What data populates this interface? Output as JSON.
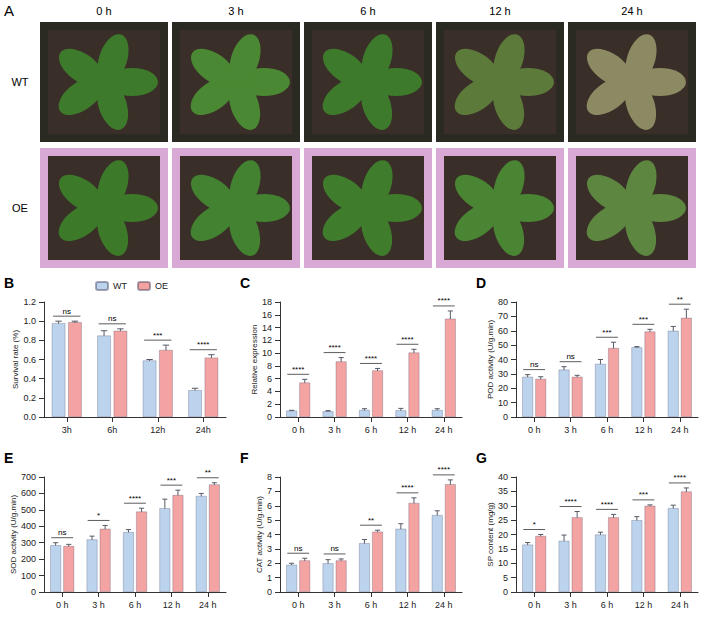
{
  "panel_a": {
    "letter": "A",
    "time_labels": [
      "0 h",
      "3 h",
      "6 h",
      "12 h",
      "24 h"
    ],
    "row_labels": [
      "WT",
      "OE"
    ]
  },
  "chart_data": [
    {
      "type": "bar",
      "letter": "B",
      "ylabel": "Survival rate (%)",
      "categories": [
        "3h",
        "6h",
        "12h",
        "24h"
      ],
      "series": [
        {
          "name": "WT",
          "color": "#bcd3ee",
          "values": [
            0.98,
            0.85,
            0.59,
            0.28
          ],
          "errors": [
            0.02,
            0.05,
            0.01,
            0.02
          ]
        },
        {
          "name": "OE",
          "color": "#f4a3a3",
          "values": [
            0.99,
            0.9,
            0.7,
            0.62
          ],
          "errors": [
            0.01,
            0.02,
            0.05,
            0.03
          ]
        }
      ],
      "significance": [
        "ns",
        "ns",
        "***",
        "****"
      ],
      "ylim": [
        0,
        1.2
      ],
      "yticks": [
        {
          "value": 0,
          "label": "0.0"
        },
        0.2,
        0.4,
        0.6,
        0.8,
        {
          "value": 1,
          "label": "1.0"
        },
        1.2
      ],
      "grid": false,
      "legend": "top"
    },
    {
      "type": "bar",
      "letter": "C",
      "ylabel": "Relative expression",
      "categories": [
        "0 h",
        "3 h",
        "6 h",
        "12 h",
        "24 h"
      ],
      "series": [
        {
          "name": "WT",
          "color": "#bcd3ee",
          "values": [
            1,
            0.9,
            1.1,
            1.05,
            1.1
          ],
          "errors": [
            0.05,
            0.1,
            0.2,
            0.3,
            0.2
          ]
        },
        {
          "name": "OE",
          "color": "#f4a3a3",
          "values": [
            5.4,
            8.7,
            7.3,
            10.1,
            15.4
          ],
          "errors": [
            0.5,
            0.6,
            0.3,
            0.5,
            1.2
          ]
        }
      ],
      "significance": [
        "****",
        "****",
        "****",
        "****",
        "****"
      ],
      "ylim": [
        0,
        18
      ],
      "yticks": [
        0,
        2,
        4,
        6,
        8,
        10,
        12,
        14,
        16,
        18
      ],
      "grid": false
    },
    {
      "type": "bar",
      "letter": "D",
      "ylabel": "POD activity (U/g.min)",
      "categories": [
        "0 h",
        "3 h",
        "6 h",
        "12 h",
        "24 h"
      ],
      "series": [
        {
          "name": "WT",
          "color": "#bcd3ee",
          "values": [
            28,
            33,
            37,
            48.5,
            60
          ],
          "errors": [
            1.5,
            2,
            3,
            0.5,
            3
          ]
        },
        {
          "name": "OE",
          "color": "#f4a3a3",
          "values": [
            26.5,
            28,
            48,
            59.5,
            69
          ],
          "errors": [
            1.5,
            1,
            4,
            1.5,
            6
          ]
        }
      ],
      "significance": [
        "ns",
        "ns",
        "***",
        "***",
        "**"
      ],
      "ylim": [
        0,
        80
      ],
      "yticks": [
        0,
        10,
        20,
        30,
        40,
        50,
        60,
        70,
        80
      ],
      "grid": false
    },
    {
      "type": "bar",
      "letter": "E",
      "ylabel": "SOD activity (U/g.min)",
      "categories": [
        "0 h",
        "3 h",
        "6 h",
        "12 h",
        "24 h"
      ],
      "series": [
        {
          "name": "WT",
          "color": "#bcd3ee",
          "values": [
            285,
            320,
            365,
            510,
            585
          ],
          "errors": [
            15,
            20,
            15,
            55,
            15
          ]
        },
        {
          "name": "OE",
          "color": "#f4a3a3",
          "values": [
            280,
            385,
            490,
            590,
            655
          ],
          "errors": [
            10,
            20,
            20,
            30,
            10
          ]
        }
      ],
      "significance": [
        "ns",
        "*",
        "****",
        "***",
        "**"
      ],
      "ylim": [
        0,
        700
      ],
      "yticks": [
        0,
        100,
        200,
        300,
        400,
        500,
        600,
        700
      ],
      "grid": false
    },
    {
      "type": "bar",
      "letter": "F",
      "ylabel": "CAT activity (U/g.min)",
      "categories": [
        "0 h",
        "3 h",
        "6 h",
        "12 h",
        "24 h"
      ],
      "series": [
        {
          "name": "WT",
          "color": "#bcd3ee",
          "values": [
            1.9,
            2.0,
            3.4,
            4.4,
            5.35
          ],
          "errors": [
            0.1,
            0.25,
            0.25,
            0.35,
            0.3
          ]
        },
        {
          "name": "OE",
          "color": "#f4a3a3",
          "values": [
            2.2,
            2.2,
            4.2,
            6.2,
            7.5
          ],
          "errors": [
            0.15,
            0.1,
            0.1,
            0.35,
            0.3
          ]
        }
      ],
      "significance": [
        "ns",
        "ns",
        "**",
        "****",
        "****"
      ],
      "ylim": [
        0,
        8
      ],
      "yticks": [
        0,
        1,
        2,
        3,
        4,
        5,
        6,
        7,
        8
      ],
      "grid": false
    },
    {
      "type": "bar",
      "letter": "G",
      "ylabel": "SP content (mg/g)",
      "categories": [
        "0 h",
        "3 h",
        "6 h",
        "12 h",
        "24 h"
      ],
      "series": [
        {
          "name": "WT",
          "color": "#bcd3ee",
          "values": [
            16.5,
            17.8,
            20,
            25,
            29.2
          ],
          "errors": [
            0.7,
            2,
            0.8,
            1.2,
            1
          ]
        },
        {
          "name": "OE",
          "color": "#f4a3a3",
          "values": [
            19.5,
            26,
            26,
            30,
            35
          ],
          "errors": [
            0.5,
            2,
            1,
            0.3,
            1.2
          ]
        }
      ],
      "significance": [
        "*",
        "****",
        "****",
        "***",
        "****"
      ],
      "ylim": [
        0,
        40
      ],
      "yticks": [
        0,
        5,
        10,
        15,
        20,
        25,
        30,
        35,
        40
      ],
      "grid": false
    }
  ]
}
